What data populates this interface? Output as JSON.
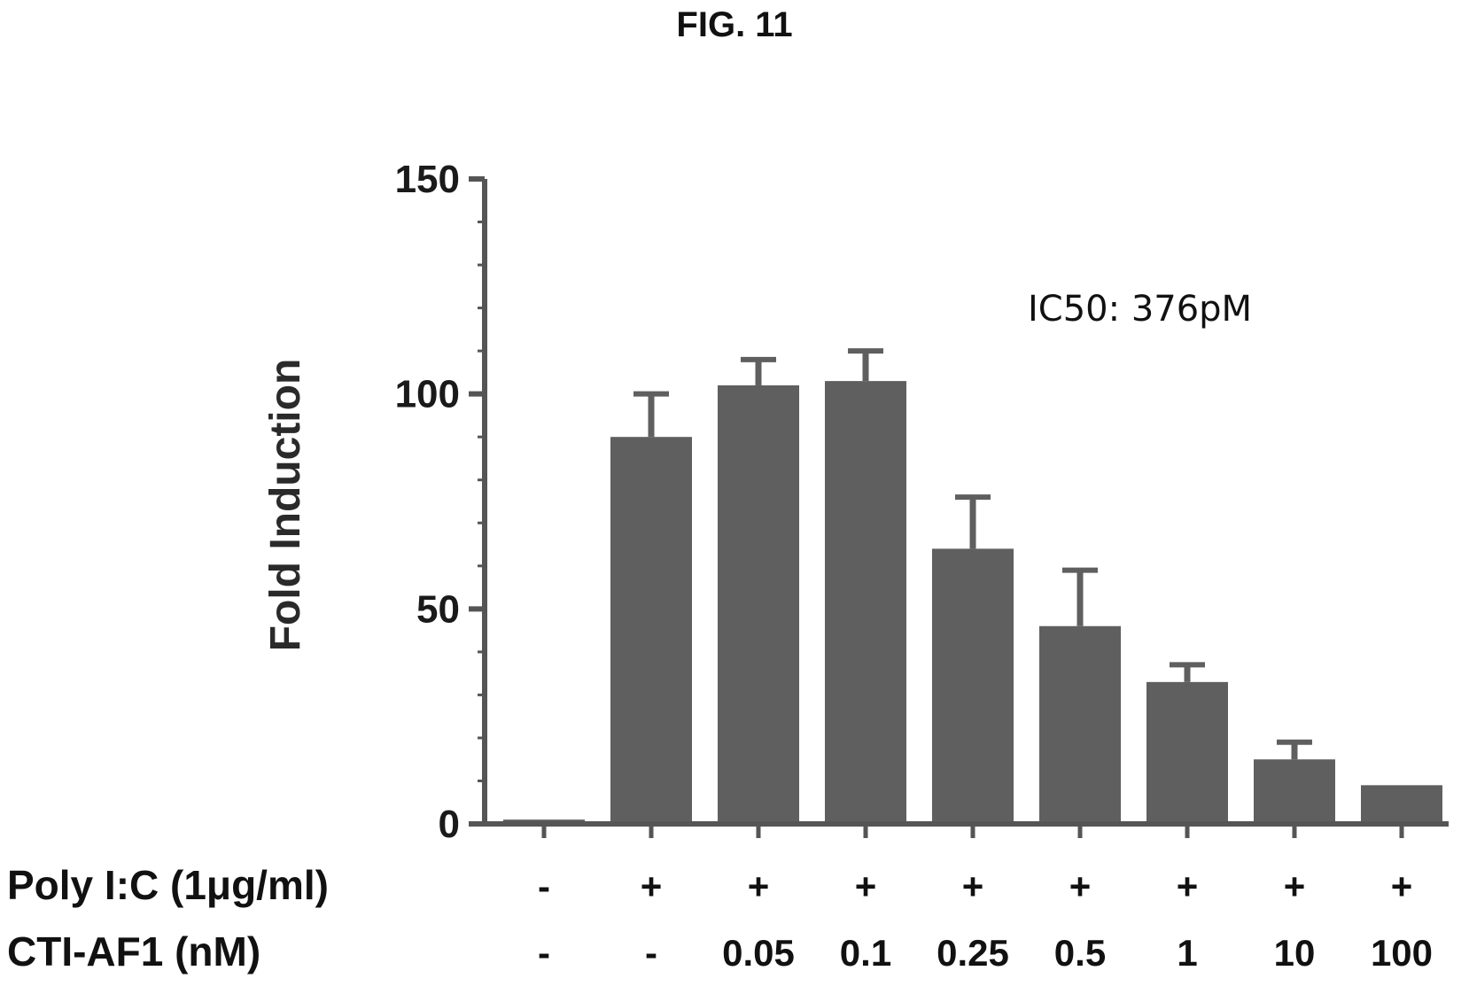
{
  "figure_title": "FIG. 11",
  "chart_data": {
    "type": "bar",
    "ylabel": "Fold Induction",
    "ylim": [
      0,
      150
    ],
    "yticks": [
      0,
      50,
      100,
      150
    ],
    "annotation": "IC50: 376pM",
    "bar_color": "#5f5f5f",
    "rows": [
      {
        "label": "Poly I:C (1μg/ml)",
        "values": [
          "-",
          "+",
          "+",
          "+",
          "+",
          "+",
          "+",
          "+",
          "+"
        ]
      },
      {
        "label": "CTI-AF1 (nM)",
        "values": [
          "-",
          "-",
          "0.05",
          "0.1",
          "0.25",
          "0.5",
          "1",
          "10",
          "100"
        ]
      }
    ],
    "values": [
      1,
      90,
      102,
      103,
      64,
      46,
      33,
      15,
      9
    ],
    "errors": [
      0,
      10,
      6,
      7,
      12,
      13,
      4,
      4,
      0
    ]
  }
}
